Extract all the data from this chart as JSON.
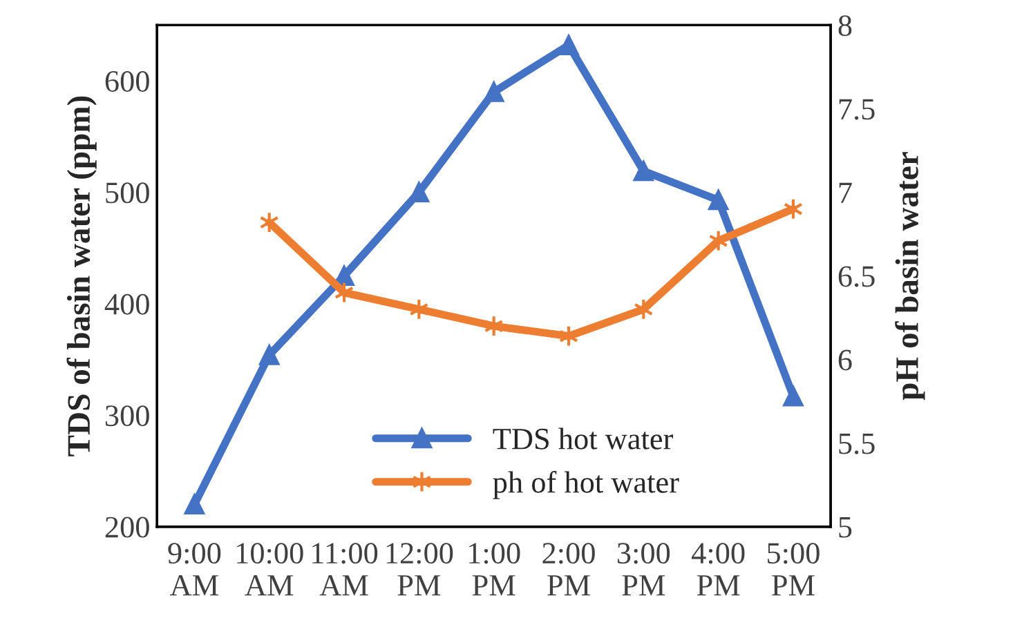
{
  "chart_data": {
    "type": "line",
    "categories": [
      "9:00\nAM",
      "10:00\nAM",
      "11:00\nAM",
      "12:00\nPM",
      "1:00\nPM",
      "2:00\nPM",
      "3:00\nPM",
      "4:00\nPM",
      "5:00\nPM"
    ],
    "ylabel": "TDS of basin water (ppm)",
    "y2label": "pH of basin water",
    "ylim": [
      200,
      650
    ],
    "yticks": [
      200,
      300,
      400,
      500,
      600
    ],
    "y2lim": [
      5,
      8
    ],
    "y2ticks": [
      5,
      5.5,
      6,
      6.5,
      7,
      7.5,
      8
    ],
    "series": [
      {
        "name": "TDS hot water",
        "color": "#4472c4",
        "marker": "triangle",
        "values": [
          220,
          354,
          425,
          500,
          590,
          632,
          519,
          493,
          317
        ]
      },
      {
        "name": "ph of hot water",
        "color": "#ed7d31",
        "marker": "cross",
        "axis": "y2",
        "values": [
          null,
          6.82,
          6.4,
          6.3,
          6.2,
          6.14,
          6.3,
          6.71,
          6.9
        ]
      }
    ],
    "grid": false,
    "legend": "bottom",
    "line_style": "solid"
  }
}
